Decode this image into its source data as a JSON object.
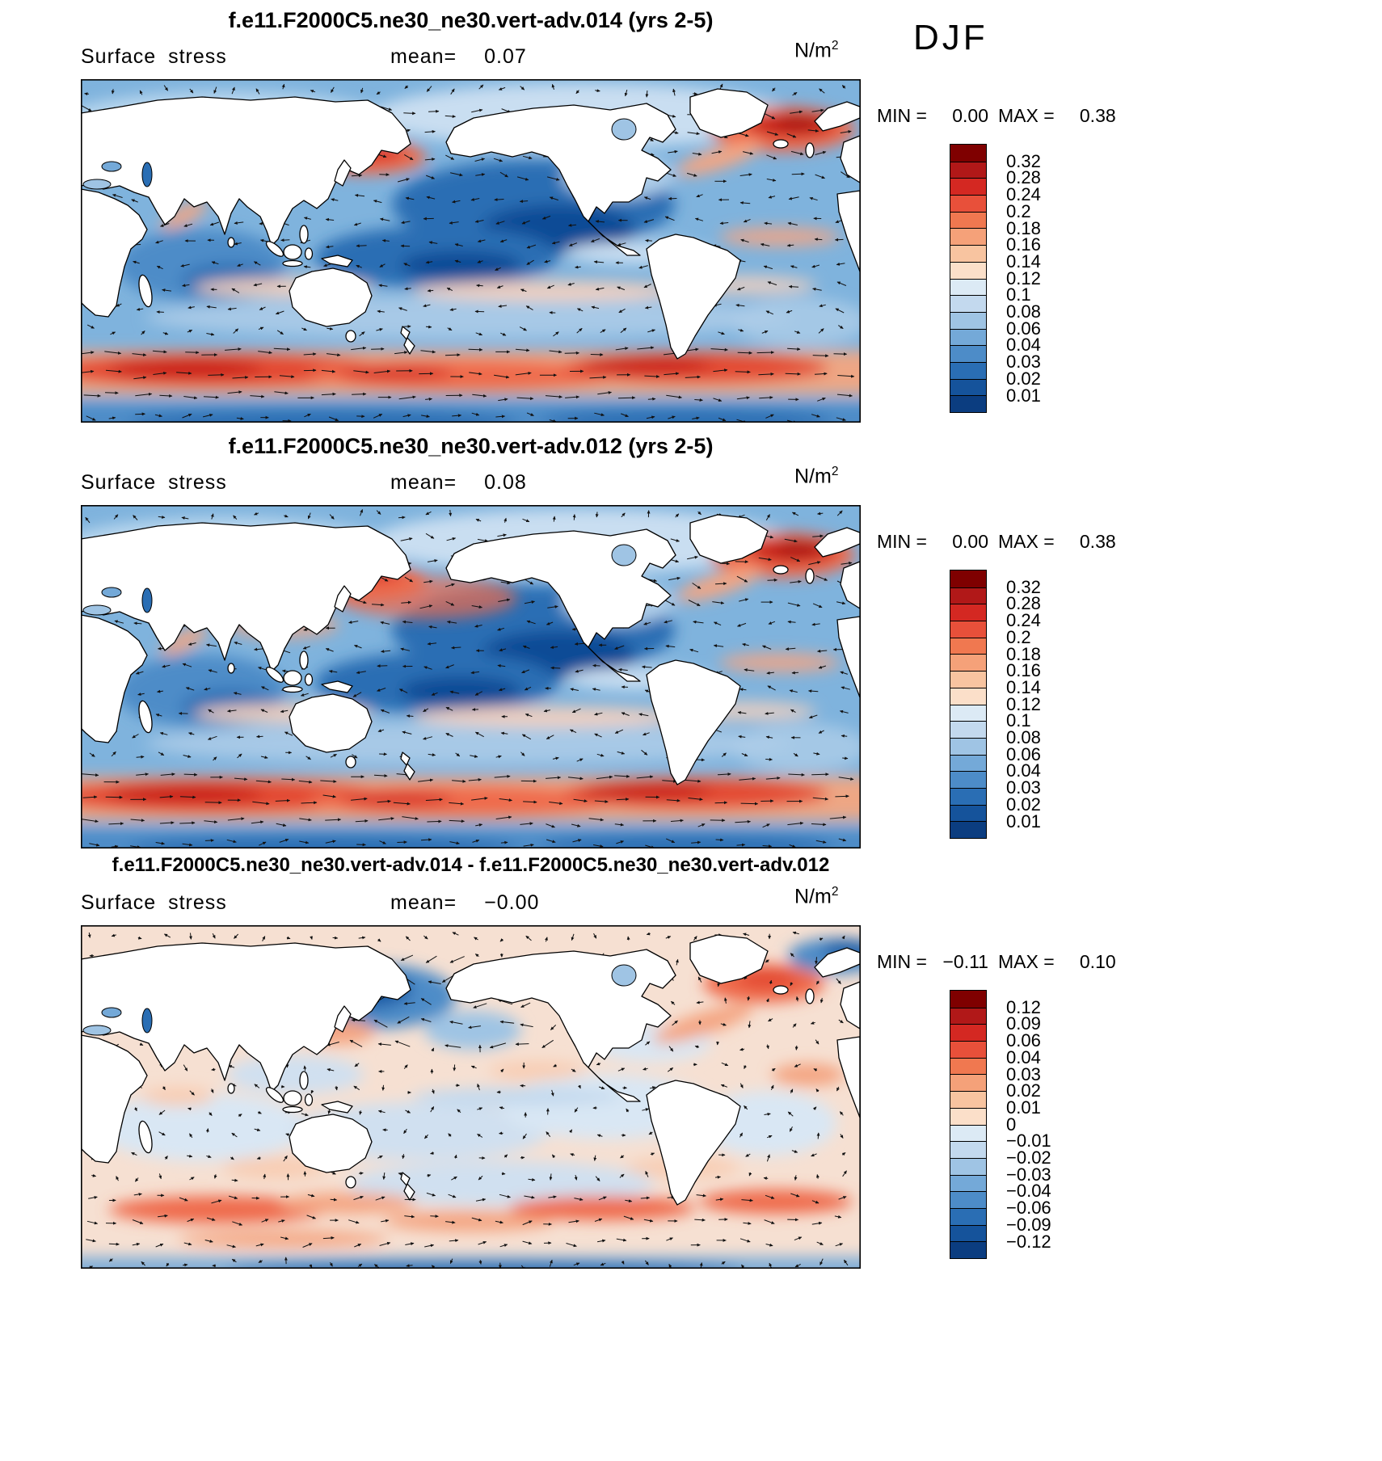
{
  "season": "DJF",
  "colorbar_colors": [
    "#7f0000",
    "#b11818",
    "#d42822",
    "#e8503a",
    "#f07850",
    "#f5a179",
    "#f8c4a0",
    "#fbdfc9",
    "#dceaf5",
    "#c3d9ee",
    "#9fc4e4",
    "#74a9d8",
    "#4d8cc8",
    "#2a6eb4",
    "#15539b",
    "#0b3d80"
  ],
  "panels": [
    {
      "title": "f.e11.F2000C5.ne30_ne30.vert-adv.014 (yrs 2-5)",
      "field_label": "Surface stress",
      "mean_label": "mean=",
      "mean_value": "0.07",
      "units_base": "N/m",
      "units_exp": "2",
      "min_label": "MIN =",
      "min_value": "0.00",
      "max_label": "MAX =",
      "max_value": "0.38",
      "colorbar_labels": [
        "0.32",
        "0.28",
        "0.24",
        "0.2",
        "0.18",
        "0.16",
        "0.14",
        "0.12",
        "0.1",
        "0.08",
        "0.06",
        "0.04",
        "0.03",
        "0.02",
        "0.01"
      ]
    },
    {
      "title": "f.e11.F2000C5.ne30_ne30.vert-adv.012 (yrs 2-5)",
      "field_label": "Surface stress",
      "mean_label": "mean=",
      "mean_value": "0.08",
      "units_base": "N/m",
      "units_exp": "2",
      "min_label": "MIN =",
      "min_value": "0.00",
      "max_label": "MAX =",
      "max_value": "0.38",
      "colorbar_labels": [
        "0.32",
        "0.28",
        "0.24",
        "0.2",
        "0.18",
        "0.16",
        "0.14",
        "0.12",
        "0.1",
        "0.08",
        "0.06",
        "0.04",
        "0.03",
        "0.02",
        "0.01"
      ]
    },
    {
      "title": "f.e11.F2000C5.ne30_ne30.vert-adv.014 - f.e11.F2000C5.ne30_ne30.vert-adv.012",
      "field_label": "Surface stress",
      "mean_label": "mean=",
      "mean_value": "−0.00",
      "units_base": "N/m",
      "units_exp": "2",
      "min_label": "MIN =",
      "min_value": "−0.11",
      "max_label": "MAX =",
      "max_value": "0.10",
      "colorbar_labels": [
        "0.12",
        "0.09",
        "0.06",
        "0.04",
        "0.03",
        "0.02",
        "0.01",
        "0",
        "−0.01",
        "−0.02",
        "−0.03",
        "−0.04",
        "−0.06",
        "−0.09",
        "−0.12"
      ]
    }
  ],
  "chart_data": [
    {
      "type": "heatmap",
      "subtype": "filled-contour global map with vector-arrow overlay",
      "title": "f.e11.F2000C5.ne30_ne30.vert-adv.014 (yrs 2-5)",
      "variable": "Surface stress",
      "season": "DJF",
      "units": "N/m^2",
      "stats": {
        "mean": 0.07,
        "min": 0.0,
        "max": 0.38
      },
      "contour_levels": [
        0.01,
        0.02,
        0.03,
        0.04,
        0.06,
        0.08,
        0.1,
        0.12,
        0.14,
        0.16,
        0.18,
        0.2,
        0.24,
        0.28,
        0.32
      ],
      "palette": "blue (low) to red (high) diverging, 16 classes",
      "overlay": "surface stress vector arrows",
      "legend_position": "right vertical colorbar",
      "notable_features": "red maxima along Southern Ocean storm track, NW Pacific and North Atlantic; dark blue minima in subtropical/central Pacific and Indian Ocean"
    },
    {
      "type": "heatmap",
      "subtype": "filled-contour global map with vector-arrow overlay",
      "title": "f.e11.F2000C5.ne30_ne30.vert-adv.012 (yrs 2-5)",
      "variable": "Surface stress",
      "season": "DJF",
      "units": "N/m^2",
      "stats": {
        "mean": 0.08,
        "min": 0.0,
        "max": 0.38
      },
      "contour_levels": [
        0.01,
        0.02,
        0.03,
        0.04,
        0.06,
        0.08,
        0.1,
        0.12,
        0.14,
        0.16,
        0.18,
        0.2,
        0.24,
        0.28,
        0.32
      ],
      "palette": "blue (low) to red (high) diverging, 16 classes",
      "overlay": "surface stress vector arrows",
      "legend_position": "right vertical colorbar",
      "notable_features": "same pattern as .014 run with slightly stronger North Pacific stress"
    },
    {
      "type": "heatmap",
      "subtype": "filled-contour global difference map with vector-arrow overlay",
      "title": "f.e11.F2000C5.ne30_ne30.vert-adv.014 - f.e11.F2000C5.ne30_ne30.vert-adv.012",
      "variable": "Surface stress difference",
      "season": "DJF",
      "units": "N/m^2",
      "stats": {
        "mean": -0.0,
        "min": -0.11,
        "max": 0.1
      },
      "contour_levels": [
        -0.12,
        -0.09,
        -0.06,
        -0.04,
        -0.03,
        -0.02,
        -0.01,
        0,
        0.01,
        0.02,
        0.03,
        0.04,
        0.06,
        0.09,
        0.12
      ],
      "palette": "blue (negative) to red (positive) diverging, 16 classes",
      "overlay": "difference vector arrows",
      "legend_position": "right vertical colorbar",
      "notable_features": "strong negative (blue) anomaly in NW North Pacific, positive (red) anomaly in western North Atlantic and patchy bands along Southern Ocean"
    }
  ]
}
